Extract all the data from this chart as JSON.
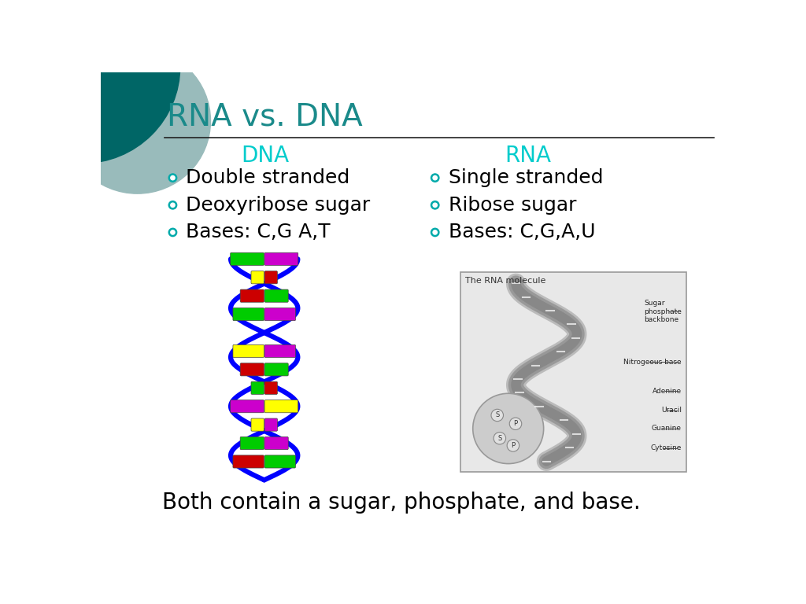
{
  "title": "RNA vs. DNA",
  "title_color": "#1a8a8a",
  "title_fontsize": 28,
  "bg_color": "#ffffff",
  "header_line_color": "#222222",
  "dna_header": "DNA",
  "rna_header": "RNA",
  "header_color": "#00cccc",
  "header_fontsize": 20,
  "dna_bullets": [
    "Double stranded",
    "Deoxyribose sugar",
    "Bases: C,G A,T"
  ],
  "rna_bullets": [
    "Single stranded",
    "Ribose sugar",
    "Bases: C,G,A,U"
  ],
  "bullet_color": "#000000",
  "bullet_fontsize": 18,
  "bullet_marker_color": "#00aaaa",
  "footer_text": "Both contain a sugar, phosphate, and base.",
  "footer_fontsize": 20,
  "footer_color": "#000000",
  "decor_circle1_color": "#006666",
  "decor_circle2_color": "#99bbbb"
}
